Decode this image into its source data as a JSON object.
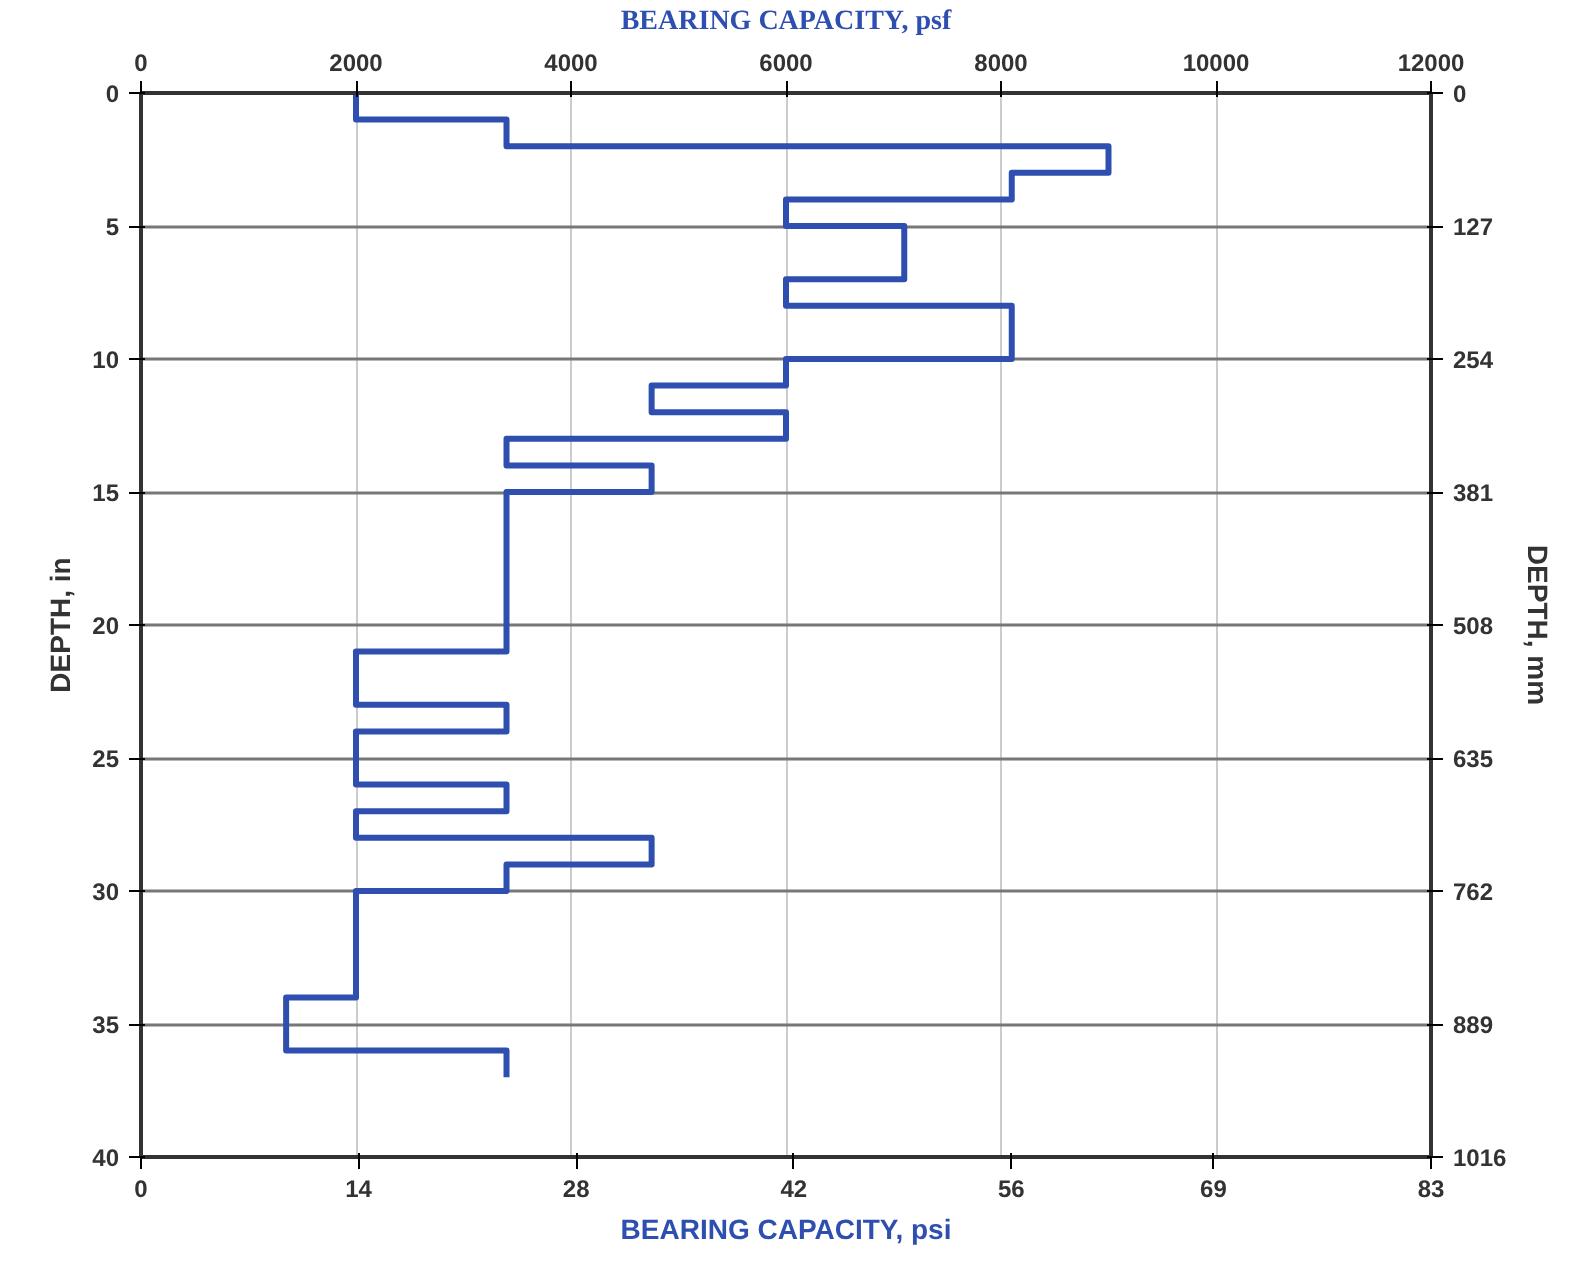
{
  "chart_data": {
    "type": "step",
    "orientation": "horizontal",
    "xlabel": "BEARING CAPACITY, psf",
    "x2label": "BEARING CAPACITY, psi",
    "ylabel": "DEPTH, in",
    "y2label": "DEPTH, mm",
    "x": [
      0,
      1,
      2,
      3,
      4,
      5,
      7,
      8,
      10,
      11,
      12,
      13,
      14,
      15,
      21,
      23,
      24,
      26,
      27,
      28,
      29,
      30,
      34,
      36,
      37
    ],
    "series": [
      {
        "color": "#2e4fb0",
        "values": [
          2000,
          3400,
          9000,
          8100,
          6000,
          7100,
          6000,
          8100,
          6000,
          4750,
          6000,
          3400,
          4750,
          3400,
          2000,
          3400,
          2000,
          3400,
          2000,
          4750,
          3400,
          2000,
          1350,
          3400,
          3400
        ]
      }
    ],
    "xlim": [
      0,
      12000
    ],
    "xticks": [
      0,
      2000,
      4000,
      6000,
      8000,
      10000,
      12000
    ],
    "x2lim": [
      0,
      83
    ],
    "x2ticks": [
      0,
      14,
      28,
      42,
      56,
      69,
      83
    ],
    "ylim": [
      40,
      0
    ],
    "yticks": [
      0,
      5,
      10,
      15,
      20,
      25,
      30,
      35,
      40
    ],
    "y2lim": [
      1016,
      0
    ],
    "y2ticks": [
      0,
      127,
      254,
      381,
      508,
      635,
      762,
      889,
      1016
    ],
    "grid": true,
    "line_style": "solid"
  }
}
